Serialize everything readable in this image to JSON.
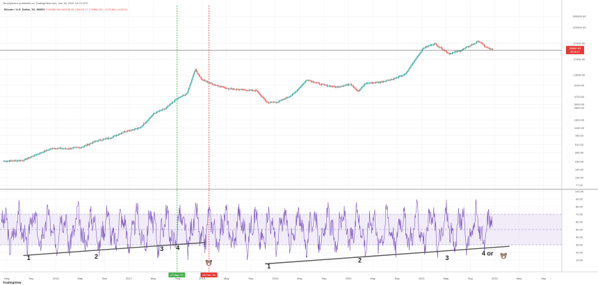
{
  "publisher_line": "TonySpilotro published on TradingView.com, Jan 18, 2022 14:33 UTC",
  "symbol_line": "Bitcoin / U.S. Dollar, 1D, INDEX",
  "ohlc_line": "O43086.98 H43238.15 L39693.17 C39882.63 −3175.86 (−4.81%)",
  "price_badge": "39882.63",
  "price_badge_sub": "09:26:27",
  "brand": "TradingView",
  "colors": {
    "up": "#26a69a",
    "down": "#ef5350",
    "rsi": "#7e57c2",
    "rsi_band": "#ede7f6",
    "green_line": "#4caf50",
    "red_line": "#e53935",
    "trendline": "#555555"
  },
  "chart_data": [
    {
      "type": "line",
      "name": "price",
      "scale": "log",
      "y_ticks": [
        200000,
        120000,
        57000,
        27000,
        13000,
        8100,
        4700,
        3300,
        2800,
        1600,
        1100,
        780,
        510,
        350,
        230,
        160,
        110,
        77
      ],
      "y_tick_labels": [
        "200000.00",
        "120000.00",
        "57000.00",
        "27000.00",
        "13000.00",
        "8100.00",
        "4700.00",
        "3300.00",
        "2800.00",
        "1600.00",
        "1100.00",
        "780.00",
        "510.00",
        "350.00",
        "230.00",
        "160.00",
        "110.00",
        "77.00"
      ],
      "x_labels": [
        "May",
        "Sep",
        "2016",
        "May",
        "Sep",
        "2017",
        "May",
        "Sep",
        "2018",
        "May",
        "Sep",
        "2019",
        "May",
        "Sep",
        "2020",
        "May",
        "Sep",
        "2021",
        "May",
        "Sep",
        "2022",
        "May",
        "Sep"
      ],
      "x": [
        2015.33,
        2015.6,
        2015.8,
        2016.0,
        2016.2,
        2016.4,
        2016.6,
        2016.8,
        2017.0,
        2017.2,
        2017.4,
        2017.55,
        2017.7,
        2017.85,
        2017.96,
        2018.05,
        2018.2,
        2018.4,
        2018.6,
        2018.8,
        2018.95,
        2019.1,
        2019.3,
        2019.5,
        2019.7,
        2019.9,
        2020.1,
        2020.2,
        2020.3,
        2020.5,
        2020.7,
        2020.85,
        2021.0,
        2021.1,
        2021.25,
        2021.45,
        2021.6,
        2021.75,
        2021.86,
        2021.95,
        2022.05
      ],
      "y": [
        235,
        245,
        330,
        430,
        420,
        450,
        600,
        700,
        950,
        1100,
        2200,
        2700,
        4200,
        5500,
        17000,
        10500,
        8500,
        7000,
        6500,
        6300,
        3600,
        3700,
        5200,
        10500,
        8300,
        7400,
        8600,
        6000,
        8800,
        9300,
        11000,
        13500,
        29000,
        46000,
        56000,
        35000,
        40000,
        52000,
        63000,
        48000,
        41500
      ],
      "markers": [
        {
          "label": "17 Sep '17",
          "x": 2017.71
        },
        {
          "label": "26 Feb '18",
          "x": 2018.15
        }
      ]
    },
    {
      "type": "line",
      "name": "rsi",
      "y_ticks": [
        100,
        90,
        80,
        70,
        60,
        50,
        40,
        30,
        20,
        10
      ],
      "y_tick_labels": [
        "100.00",
        "90.00",
        "80.00",
        "70.00",
        "60.00",
        "50.00",
        "40.00",
        "30.00",
        "20.00",
        "10.00"
      ],
      "band": [
        30,
        70
      ],
      "annotations": [
        {
          "text": "1",
          "x": 2015.65,
          "y": 10
        },
        {
          "text": "2",
          "x": 2016.58,
          "y": 12
        },
        {
          "text": "3",
          "x": 2017.48,
          "y": 22
        },
        {
          "text": "4",
          "x": 2017.7,
          "y": 23
        },
        {
          "text": "1",
          "x": 2018.95,
          "y": -1
        },
        {
          "text": "2",
          "x": 2020.2,
          "y": 7
        },
        {
          "text": "3",
          "x": 2021.4,
          "y": 10
        },
        {
          "text": "4 or",
          "x": 2021.9,
          "y": 16
        }
      ],
      "trendlines": [
        {
          "x": [
            2015.6,
            2018.1
          ],
          "y": [
            16,
            33
          ]
        },
        {
          "x": [
            2018.92,
            2022.28
          ],
          "y": [
            5,
            28
          ]
        }
      ]
    }
  ]
}
